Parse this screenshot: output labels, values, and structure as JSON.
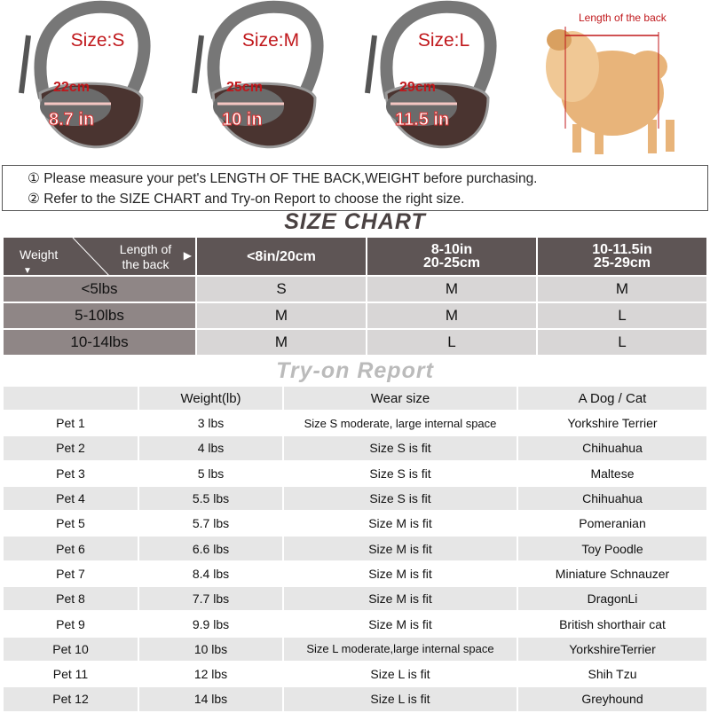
{
  "bags": [
    {
      "size": "Size:S",
      "cm": "22cm",
      "inch": "8.7 in"
    },
    {
      "size": "Size:M",
      "cm": "25cm",
      "inch": "10 in"
    },
    {
      "size": "Size:L",
      "cm": "29cm",
      "inch": "11.5 in"
    }
  ],
  "dog": {
    "label": "Length of the back"
  },
  "instructions": [
    "① Please measure your pet's LENGTH OF THE BACK,WEIGHT before purchasing.",
    "② Refer to the SIZE CHART and Try-on Report to choose the right size."
  ],
  "size_chart": {
    "title": "SIZE CHART",
    "corner_weight": "Weight",
    "corner_length": "Length of the back",
    "columns": [
      [
        "<8in/20cm",
        ""
      ],
      [
        "8-10in",
        "20-25cm"
      ],
      [
        "10-11.5in",
        "25-29cm"
      ]
    ],
    "rows": [
      {
        "weight": "<5lbs",
        "sizes": [
          "S",
          "M",
          "M"
        ]
      },
      {
        "weight": "5-10lbs",
        "sizes": [
          "M",
          "M",
          "L"
        ]
      },
      {
        "weight": "10-14lbs",
        "sizes": [
          "M",
          "L",
          "L"
        ]
      }
    ]
  },
  "try_on": {
    "title": "Try-on Report",
    "headers": [
      "",
      "Weight(lb)",
      "Wear size",
      "A Dog / Cat"
    ],
    "rows": [
      [
        "Pet 1",
        "3 lbs",
        "Size S moderate, large internal space",
        "Yorkshire Terrier"
      ],
      [
        "Pet 2",
        "4 lbs",
        "Size S is fit",
        "Chihuahua"
      ],
      [
        "Pet 3",
        "5 lbs",
        "Size S is fit",
        "Maltese"
      ],
      [
        "Pet 4",
        "5.5 lbs",
        "Size S is fit",
        "Chihuahua"
      ],
      [
        "Pet 5",
        "5.7 lbs",
        "Size M is fit",
        "Pomeranian"
      ],
      [
        "Pet 6",
        "6.6 lbs",
        "Size M is fit",
        "Toy Poodle"
      ],
      [
        "Pet 7",
        "8.4 lbs",
        "Size M is fit",
        "Miniature Schnauzer"
      ],
      [
        "Pet 8",
        "7.7 lbs",
        "Size M is fit",
        "DragonLi"
      ],
      [
        "Pet 9",
        "9.9 lbs",
        "Size M is fit",
        "British shorthair cat"
      ],
      [
        "Pet 10",
        "10 lbs",
        "Size L moderate,large internal space",
        "YorkshireTerrier"
      ],
      [
        "Pet 11",
        "12 lbs",
        "Size L is fit",
        "Shih Tzu"
      ],
      [
        "Pet 12",
        "14 lbs",
        "Size L is fit",
        "Greyhound"
      ]
    ]
  }
}
